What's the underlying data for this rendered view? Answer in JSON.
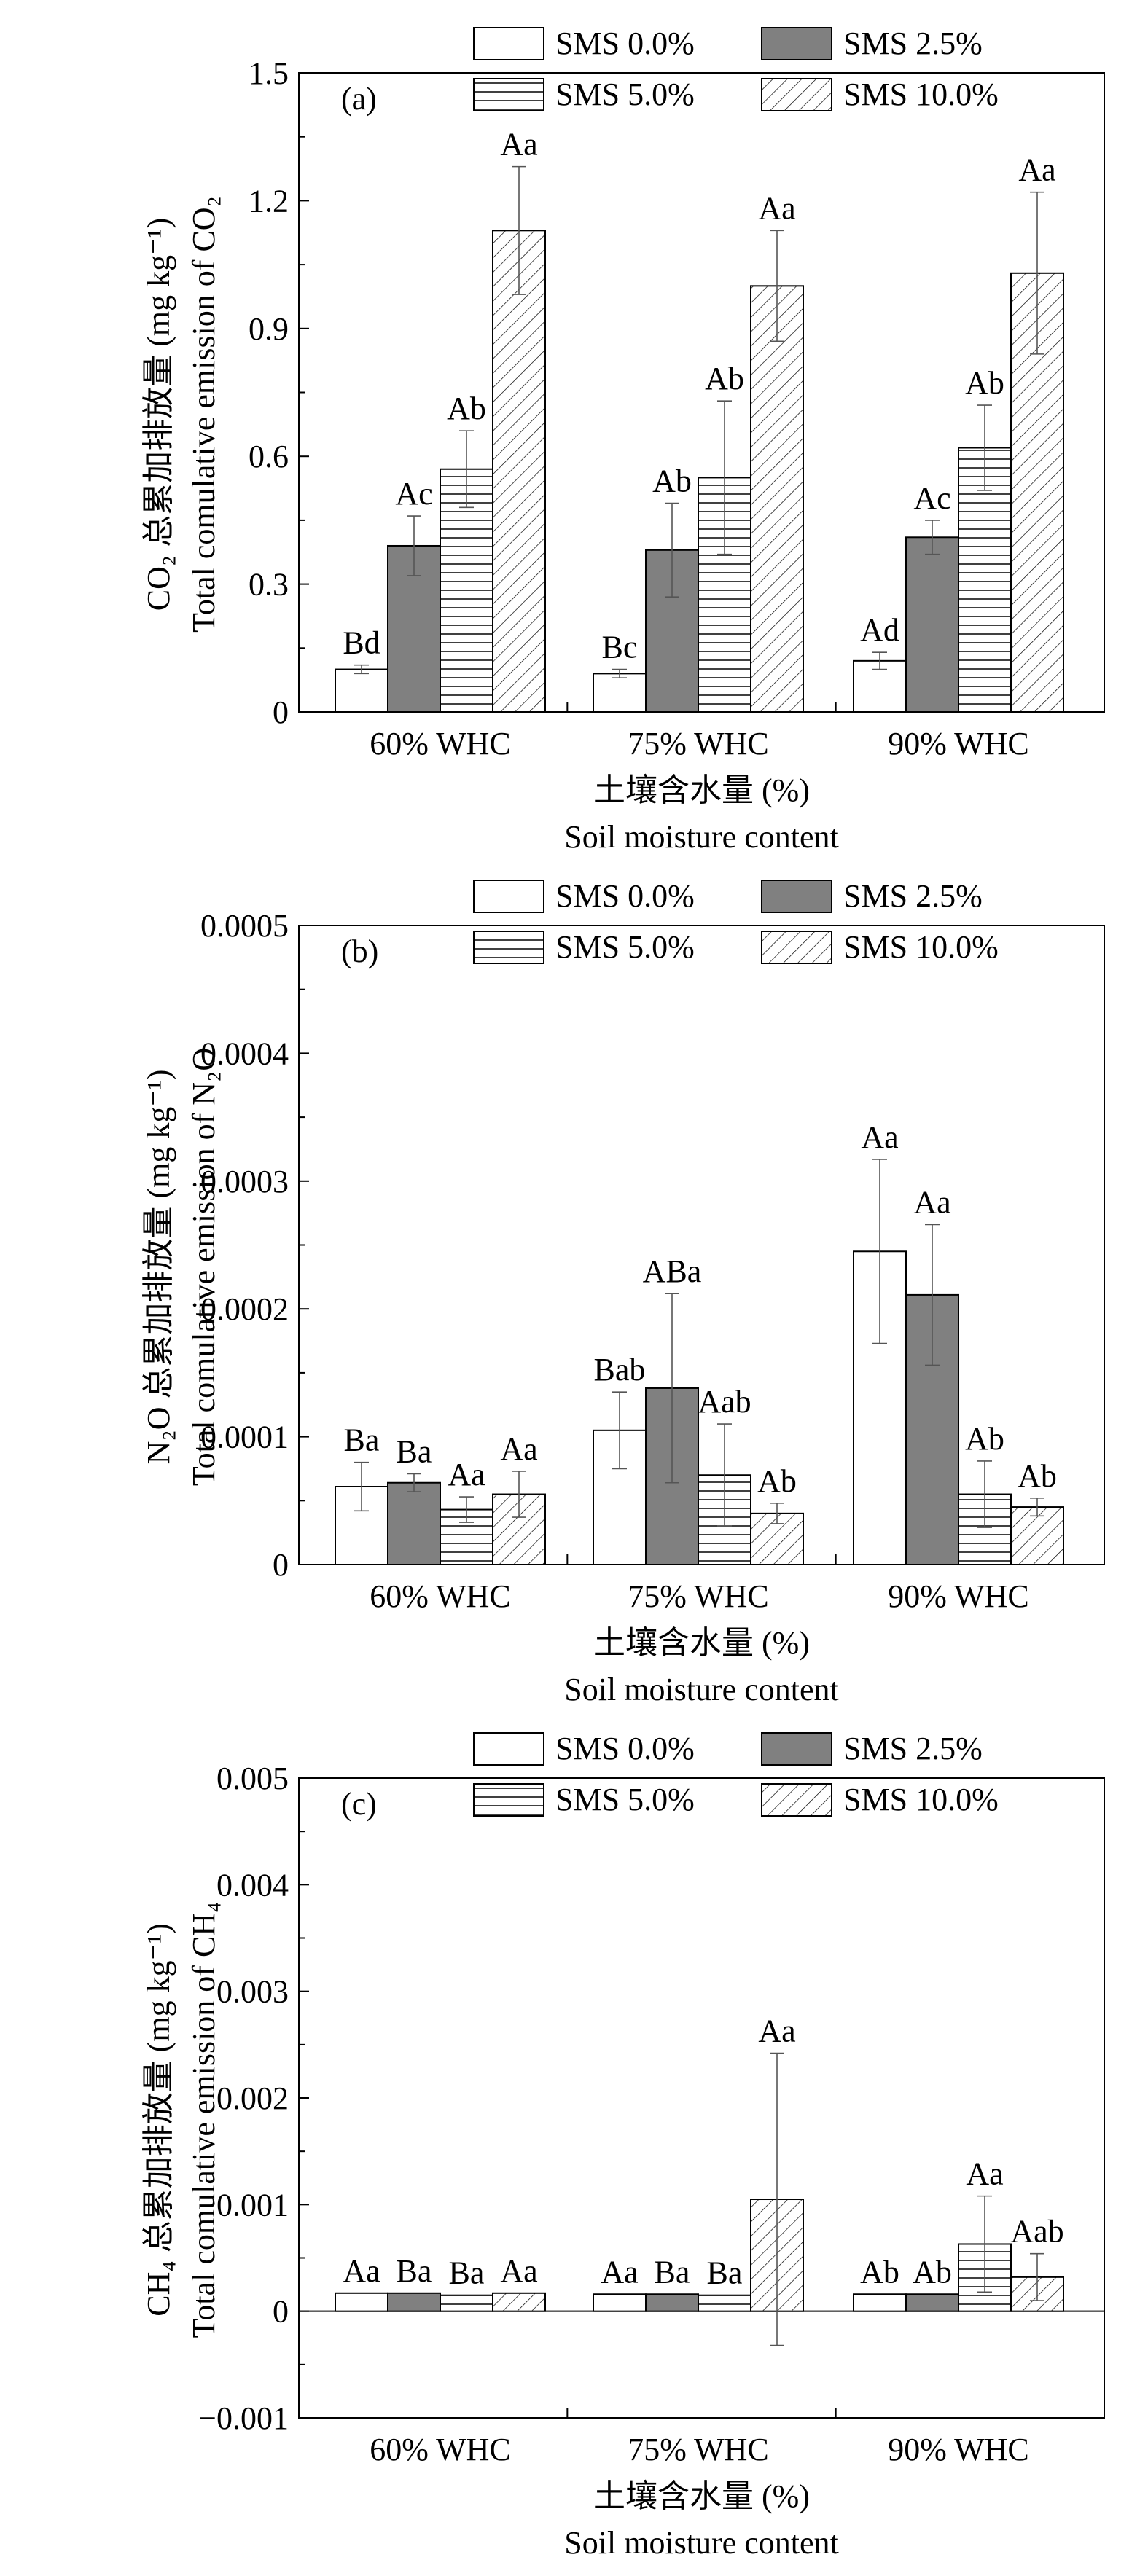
{
  "chart_data": [
    {
      "panel": "(a)",
      "type": "bar",
      "categories": [
        "60% WHC",
        "75% WHC",
        "90% WHC"
      ],
      "xlabel_cn": "土壤含水量 (%)",
      "xlabel_en": "Soil moisture content",
      "ylabel_cn": "CO₂ 总累加排放量 (mg kg⁻¹)",
      "ylabel_en": "Total comulative emission of CO₂",
      "ylim": [
        0,
        1.5
      ],
      "yticks": [
        0,
        0.3,
        0.6,
        0.9,
        1.2,
        1.5
      ],
      "ytick_labels": [
        "0",
        "0.3",
        "0.6",
        "0.9",
        "1.2",
        "1.5"
      ],
      "legend_position": "top-right",
      "series": [
        {
          "name": "SMS 0.0%",
          "values": [
            0.1,
            0.09,
            0.12
          ],
          "errors": [
            0.01,
            0.01,
            0.02
          ],
          "labels": [
            "Bd",
            "Bc",
            "Ad"
          ]
        },
        {
          "name": "SMS 2.5%",
          "values": [
            0.39,
            0.38,
            0.41
          ],
          "errors": [
            0.07,
            0.11,
            0.04
          ],
          "labels": [
            "Ac",
            "Ab",
            "Ac"
          ]
        },
        {
          "name": "SMS 5.0%",
          "values": [
            0.57,
            0.55,
            0.62
          ],
          "errors": [
            0.09,
            0.18,
            0.1
          ],
          "labels": [
            "Ab",
            "Ab",
            "Ab"
          ]
        },
        {
          "name": "SMS 10.0%",
          "values": [
            1.13,
            1.0,
            1.03
          ],
          "errors": [
            0.15,
            0.13,
            0.19
          ],
          "labels": [
            "Aa",
            "Aa",
            "Aa"
          ]
        }
      ]
    },
    {
      "panel": "(b)",
      "type": "bar",
      "categories": [
        "60% WHC",
        "75% WHC",
        "90% WHC"
      ],
      "xlabel_cn": "土壤含水量 (%)",
      "xlabel_en": "Soil moisture content",
      "ylabel_cn": "N₂O 总累加排放量 (mg kg⁻¹)",
      "ylabel_en": "Total comulative emission of N₂O",
      "ylim": [
        0,
        0.0005
      ],
      "yticks": [
        0,
        0.0001,
        0.0002,
        0.0003,
        0.0004,
        0.0005
      ],
      "ytick_labels": [
        "0",
        "0.0001",
        "0.0002",
        "0.0003",
        "0.0004",
        "0.0005"
      ],
      "legend_position": "top-right",
      "series": [
        {
          "name": "SMS 0.0%",
          "values": [
            6.1e-05,
            0.000105,
            0.000245
          ],
          "errors": [
            1.9e-05,
            3e-05,
            7.2e-05
          ],
          "labels": [
            "Ba",
            "Bab",
            "Aa"
          ]
        },
        {
          "name": "SMS 2.5%",
          "values": [
            6.4e-05,
            0.000138,
            0.000211
          ],
          "errors": [
            7e-06,
            7.4e-05,
            5.5e-05
          ],
          "labels": [
            "Ba",
            "ABa",
            "Aa"
          ]
        },
        {
          "name": "SMS 5.0%",
          "values": [
            4.3e-05,
            7e-05,
            5.5e-05
          ],
          "errors": [
            1e-05,
            4e-05,
            2.6e-05
          ],
          "labels": [
            "Aa",
            "Aab",
            "Ab"
          ]
        },
        {
          "name": "SMS 10.0%",
          "values": [
            5.5e-05,
            4e-05,
            4.5e-05
          ],
          "errors": [
            1.8e-05,
            8e-06,
            7e-06
          ],
          "labels": [
            "Aa",
            "Ab",
            "Ab"
          ]
        }
      ]
    },
    {
      "panel": "(c)",
      "type": "bar",
      "categories": [
        "60% WHC",
        "75% WHC",
        "90% WHC"
      ],
      "xlabel_cn": "土壤含水量 (%)",
      "xlabel_en": "Soil moisture content",
      "ylabel_cn": "CH₄ 总累加排放量 (mg kg⁻¹)",
      "ylabel_en": "Total comulative emission of CH₄",
      "ylim": [
        -0.001,
        0.005
      ],
      "yticks": [
        -0.001,
        0,
        0.001,
        0.002,
        0.003,
        0.004,
        0.005
      ],
      "ytick_labels": [
        "−0.001",
        "0",
        "0.001",
        "0.002",
        "0.003",
        "0.004",
        "0.005"
      ],
      "legend_position": "top-right",
      "series": [
        {
          "name": "SMS 0.0%",
          "values": [
            0.00017,
            0.00016,
            0.00016
          ],
          "errors": [
            0,
            0,
            0
          ],
          "labels": [
            "Aa",
            "Aa",
            "Ab"
          ]
        },
        {
          "name": "SMS 2.5%",
          "values": [
            0.00017,
            0.00016,
            0.00016
          ],
          "errors": [
            0,
            0,
            0
          ],
          "labels": [
            "Ba",
            "Ba",
            "Ab"
          ]
        },
        {
          "name": "SMS 5.0%",
          "values": [
            0.00015,
            0.00015,
            0.00063
          ],
          "errors": [
            0,
            0,
            0.00045
          ],
          "labels": [
            "Ba",
            "Ba",
            "Aa"
          ]
        },
        {
          "name": "SMS 10.0%",
          "values": [
            0.00017,
            0.00105,
            0.00032
          ],
          "errors": [
            0,
            0.00137,
            0.00022
          ],
          "labels": [
            "Aa",
            "Aa",
            "Aab"
          ]
        }
      ]
    }
  ],
  "legend_styles": {
    "SMS 0.0%": "white",
    "SMS 2.5%": "#808080",
    "SMS 5.0%": "horizontal-lines",
    "SMS 10.0%": "diagonal-hatch"
  }
}
